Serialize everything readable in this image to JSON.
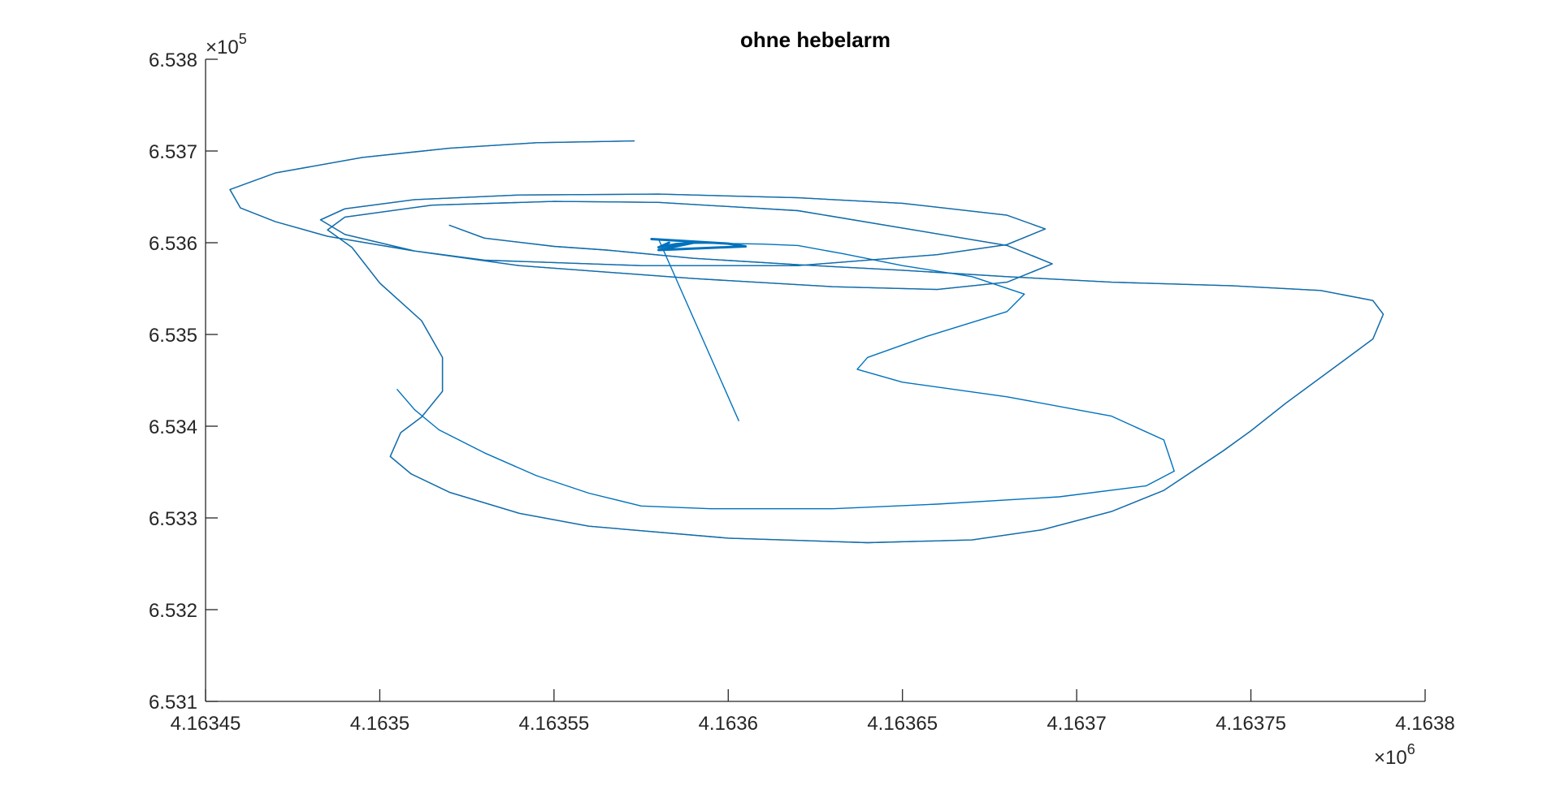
{
  "chart_data": {
    "type": "line",
    "title": "ohne hebelarm",
    "xlabel": "",
    "ylabel": "",
    "x_exponent_label": "×10",
    "x_exponent_power": "6",
    "y_exponent_label": "×10",
    "y_exponent_power": "5",
    "xlim": [
      4.16345,
      4.1638
    ],
    "ylim": [
      6.531,
      6.538
    ],
    "x_scale": 1000000,
    "y_scale": 100000,
    "xticks": [
      4.16345,
      4.1635,
      4.16355,
      4.1636,
      4.16365,
      4.1637,
      4.16375,
      4.1638
    ],
    "xtick_labels": [
      "4.16345",
      "4.1635",
      "4.16355",
      "4.1636",
      "4.16365",
      "4.1637",
      "4.16375",
      "4.1638"
    ],
    "yticks": [
      6.531,
      6.532,
      6.533,
      6.534,
      6.535,
      6.536,
      6.537,
      6.538
    ],
    "ytick_labels": [
      "6.531",
      "6.532",
      "6.533",
      "6.534",
      "6.535",
      "6.536",
      "6.537",
      "6.538"
    ],
    "grid": false,
    "box": false,
    "series": [
      {
        "color": "#D95319",
        "points": [
          [
            4.163573,
            6.53711
          ],
          [
            4.163545,
            6.53709
          ],
          [
            4.16352,
            6.53703
          ],
          [
            4.163495,
            6.53693
          ],
          [
            4.16347,
            6.53676
          ],
          [
            4.163457,
            6.53658
          ],
          [
            4.16346,
            6.53638
          ],
          [
            4.16347,
            6.53623
          ],
          [
            4.163485,
            6.53607
          ],
          [
            4.16351,
            6.53591
          ],
          [
            4.16353,
            6.53581
          ],
          [
            4.163575,
            6.53575
          ],
          [
            4.16362,
            6.53575
          ],
          [
            4.16366,
            6.53587
          ],
          [
            4.16368,
            6.53598
          ],
          [
            4.163691,
            6.53615
          ],
          [
            4.16368,
            6.5363
          ],
          [
            4.16365,
            6.53643
          ],
          [
            4.16362,
            6.53649
          ],
          [
            4.16358,
            6.53653
          ],
          [
            4.16354,
            6.53652
          ],
          [
            4.16351,
            6.53647
          ],
          [
            4.16349,
            6.53637
          ],
          [
            4.163483,
            6.53625
          ],
          [
            4.16349,
            6.53609
          ],
          [
            4.16351,
            6.53591
          ],
          [
            4.16354,
            6.53575
          ],
          [
            4.16359,
            6.53561
          ],
          [
            4.16363,
            6.53552
          ],
          [
            4.16366,
            6.53549
          ],
          [
            4.16368,
            6.53557
          ],
          [
            4.163693,
            6.53577
          ],
          [
            4.16368,
            6.53597
          ],
          [
            4.16365,
            6.53616
          ],
          [
            4.16362,
            6.53635
          ],
          [
            4.16358,
            6.53644
          ],
          [
            4.16355,
            6.53645
          ],
          [
            4.163515,
            6.53641
          ],
          [
            4.16349,
            6.53628
          ],
          [
            4.163485,
            6.53614
          ],
          [
            4.163492,
            6.53595
          ],
          [
            4.1635,
            6.53556
          ],
          [
            4.163512,
            6.53515
          ],
          [
            4.163518,
            6.53475
          ],
          [
            4.163518,
            6.53438
          ],
          [
            4.163512,
            6.5341
          ],
          [
            4.163506,
            6.53393
          ],
          [
            4.163503,
            6.53367
          ],
          [
            4.163509,
            6.53348
          ],
          [
            4.16352,
            6.53328
          ],
          [
            4.16354,
            6.53305
          ],
          [
            4.16356,
            6.53291
          ],
          [
            4.1636,
            6.53278
          ],
          [
            4.16364,
            6.53273
          ],
          [
            4.16367,
            6.53276
          ],
          [
            4.16369,
            6.53287
          ],
          [
            4.16371,
            6.53307
          ],
          [
            4.163725,
            6.5333
          ],
          [
            4.163742,
            6.53373
          ],
          [
            4.16375,
            6.53395
          ],
          [
            4.16376,
            6.53425
          ],
          [
            4.163775,
            6.53467
          ],
          [
            4.163785,
            6.53495
          ],
          [
            4.163788,
            6.53522
          ],
          [
            4.163785,
            6.53537
          ],
          [
            4.16377,
            6.53548
          ],
          [
            4.163745,
            6.53553
          ],
          [
            4.16371,
            6.53557
          ],
          [
            4.16368,
            6.53563
          ],
          [
            4.16365,
            6.5357
          ],
          [
            4.16362,
            6.53576
          ],
          [
            4.16359,
            6.53583
          ],
          [
            4.163565,
            6.53592
          ],
          [
            4.16355,
            6.53596
          ],
          [
            4.16353,
            6.53605
          ],
          [
            4.16352,
            6.53619
          ]
        ]
      },
      {
        "color": "#0072BD",
        "points": [
          [
            4.163573,
            6.53711
          ],
          [
            4.163545,
            6.53709
          ],
          [
            4.16352,
            6.53703
          ],
          [
            4.163495,
            6.53693
          ],
          [
            4.16347,
            6.53676
          ],
          [
            4.163457,
            6.53658
          ],
          [
            4.16346,
            6.53638
          ],
          [
            4.16347,
            6.53623
          ],
          [
            4.163485,
            6.53607
          ],
          [
            4.16351,
            6.53591
          ],
          [
            4.16353,
            6.53581
          ],
          [
            4.163575,
            6.53575
          ],
          [
            4.16362,
            6.53575
          ],
          [
            4.16366,
            6.53587
          ],
          [
            4.16368,
            6.53598
          ],
          [
            4.163691,
            6.53615
          ],
          [
            4.16368,
            6.5363
          ],
          [
            4.16365,
            6.53643
          ],
          [
            4.16362,
            6.53649
          ],
          [
            4.16358,
            6.53653
          ],
          [
            4.16354,
            6.53652
          ],
          [
            4.16351,
            6.53647
          ],
          [
            4.16349,
            6.53637
          ],
          [
            4.163483,
            6.53625
          ],
          [
            4.16349,
            6.53609
          ],
          [
            4.16351,
            6.53591
          ],
          [
            4.16354,
            6.53575
          ],
          [
            4.16359,
            6.53561
          ],
          [
            4.16363,
            6.53552
          ],
          [
            4.16366,
            6.53549
          ],
          [
            4.16368,
            6.53557
          ],
          [
            4.163693,
            6.53577
          ],
          [
            4.16368,
            6.53597
          ],
          [
            4.16365,
            6.53616
          ],
          [
            4.16362,
            6.53635
          ],
          [
            4.16358,
            6.53644
          ],
          [
            4.16355,
            6.53645
          ],
          [
            4.163515,
            6.53641
          ],
          [
            4.16349,
            6.53628
          ],
          [
            4.163485,
            6.53614
          ],
          [
            4.163492,
            6.53595
          ],
          [
            4.1635,
            6.53556
          ],
          [
            4.163512,
            6.53515
          ],
          [
            4.163518,
            6.53475
          ],
          [
            4.163518,
            6.53438
          ],
          [
            4.163512,
            6.5341
          ],
          [
            4.163506,
            6.53393
          ],
          [
            4.163503,
            6.53367
          ],
          [
            4.163509,
            6.53348
          ],
          [
            4.16352,
            6.53328
          ],
          [
            4.16354,
            6.53305
          ],
          [
            4.16356,
            6.53291
          ],
          [
            4.1636,
            6.53278
          ],
          [
            4.16364,
            6.53273
          ],
          [
            4.16367,
            6.53276
          ],
          [
            4.16369,
            6.53287
          ],
          [
            4.16371,
            6.53307
          ],
          [
            4.163725,
            6.5333
          ],
          [
            4.163742,
            6.53373
          ],
          [
            4.16375,
            6.53395
          ],
          [
            4.16376,
            6.53425
          ],
          [
            4.163775,
            6.53467
          ],
          [
            4.163785,
            6.53495
          ],
          [
            4.163788,
            6.53522
          ],
          [
            4.163785,
            6.53537
          ],
          [
            4.16377,
            6.53548
          ],
          [
            4.163745,
            6.53553
          ],
          [
            4.16371,
            6.53557
          ],
          [
            4.16368,
            6.53563
          ],
          [
            4.16365,
            6.5357
          ],
          [
            4.16362,
            6.53576
          ],
          [
            4.16359,
            6.53583
          ],
          [
            4.163565,
            6.53592
          ],
          [
            4.16355,
            6.53596
          ],
          [
            4.16353,
            6.53605
          ],
          [
            4.16352,
            6.53619
          ]
        ]
      },
      {
        "color": "#0072BD",
        "points": [
          [
            4.163585,
            6.53599
          ],
          [
            4.163595,
            6.535995
          ],
          [
            4.16361,
            6.535985
          ],
          [
            4.16362,
            6.53597
          ],
          [
            4.163633,
            6.53588
          ],
          [
            4.16365,
            6.53575
          ],
          [
            4.16367,
            6.53563
          ],
          [
            4.163685,
            6.53544
          ],
          [
            4.16368,
            6.53525
          ],
          [
            4.163657,
            6.53498
          ],
          [
            4.16364,
            6.53475
          ],
          [
            4.163637,
            6.53462
          ],
          [
            4.16365,
            6.53448
          ],
          [
            4.16368,
            6.53432
          ],
          [
            4.16371,
            6.53411
          ],
          [
            4.163725,
            6.53385
          ],
          [
            4.163728,
            6.53351
          ],
          [
            4.16372,
            6.53335
          ],
          [
            4.163695,
            6.53323
          ],
          [
            4.16366,
            6.53315
          ],
          [
            4.16363,
            6.5331
          ],
          [
            4.163595,
            6.5331
          ],
          [
            4.163575,
            6.53313
          ],
          [
            4.16356,
            6.53327
          ],
          [
            4.163545,
            6.53346
          ],
          [
            4.16353,
            6.53371
          ],
          [
            4.163517,
            6.53396
          ],
          [
            4.16351,
            6.53418
          ],
          [
            4.163505,
            6.5344
          ]
        ]
      },
      {
        "color": "#0072BD",
        "points": [
          [
            4.163583,
            6.536
          ],
          [
            4.16358,
            6.53595
          ],
          [
            4.163585,
            6.535985
          ],
          [
            4.16359,
            6.536
          ],
          [
            4.16358,
            6.53592
          ],
          [
            4.163605,
            6.53596
          ],
          [
            4.1636,
            6.53599
          ],
          [
            4.163578,
            6.53604
          ]
        ]
      },
      {
        "color": "#0072BD",
        "points": [
          [
            4.16358,
            6.53604
          ],
          [
            4.163603,
            6.53406
          ]
        ]
      }
    ]
  }
}
